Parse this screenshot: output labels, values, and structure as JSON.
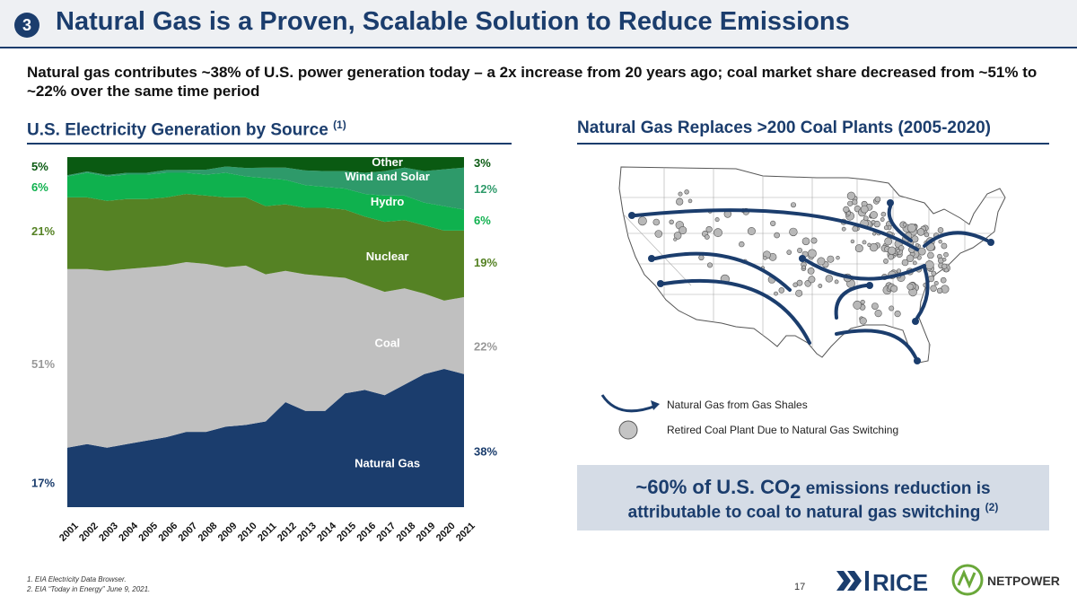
{
  "header": {
    "section_number": "3",
    "title": "Natural Gas is a Proven, Scalable Solution to Reduce Emissions"
  },
  "subtitle": "Natural gas contributes ~38% of U.S. power generation today – a 2x increase from 20 years ago; coal market share decreased from ~51% to ~22% over the same time period",
  "left_section": {
    "title": "U.S. Electricity Generation by Source",
    "footnote_ref": "(1)"
  },
  "right_section": {
    "title": "Natural Gas Replaces >200 Coal Plants (2005-2020)"
  },
  "map_legend": {
    "arrow_label": "Natural Gas from Gas Shales",
    "dot_label": "Retired Coal Plant Due to Natural Gas Switching"
  },
  "callout": {
    "line1_big": "~60% of U.S. CO",
    "line1_sub": "2",
    "line1_rest": " emissions reduction is",
    "line2": "attributable to coal to natural gas switching ",
    "line2_ref": "(2)"
  },
  "footnotes": [
    "1.  EIA Electricity Data Browser.",
    "2.  EIA “Today in Energy” June 9, 2021."
  ],
  "page_number": "17",
  "logos": {
    "rice": "RICE",
    "netpower": "NETPOWER"
  },
  "colors": {
    "natural_gas": "#1b3d6d",
    "coal": "#c0c0c0",
    "nuclear": "#558224",
    "hydro": "#0fb14e",
    "wind_solar": "#2e9a6a",
    "other": "#0a5a12",
    "title_blue": "#1b3d6d"
  },
  "chart_data": {
    "type": "area",
    "stacked": true,
    "title": "U.S. Electricity Generation by Source",
    "x": [
      "2001",
      "2002",
      "2003",
      "2004",
      "2005",
      "2006",
      "2007",
      "2008",
      "2009",
      "2010",
      "2011",
      "2012",
      "2013",
      "2014",
      "2015",
      "2016",
      "2017",
      "2018",
      "2019",
      "2020",
      "2021"
    ],
    "ylim": [
      0,
      100
    ],
    "series": [
      {
        "name": "Natural Gas",
        "values": [
          17,
          18,
          17,
          18,
          19,
          20,
          21.5,
          21.5,
          23,
          23.5,
          24.5,
          30,
          27.5,
          27.5,
          32.5,
          33.5,
          32,
          35,
          38,
          39.5,
          38
        ]
      },
      {
        "name": "Coal",
        "values": [
          51,
          50,
          50.5,
          50,
          49.5,
          49,
          48.5,
          48,
          45.5,
          45.5,
          42,
          37.5,
          39,
          38.5,
          33,
          30,
          29.5,
          27.5,
          23,
          19.5,
          22
        ]
      },
      {
        "name": "Nuclear",
        "values": [
          20.5,
          20.5,
          20,
          20,
          19.5,
          19.5,
          19.5,
          19.5,
          20,
          19.5,
          19.5,
          19,
          19,
          19.5,
          19.5,
          19.5,
          20,
          19.5,
          19.5,
          20,
          19
        ]
      },
      {
        "name": "Hydro",
        "values": [
          6,
          7,
          7,
          7,
          7,
          7,
          6,
          6,
          7,
          6,
          8,
          7,
          6.5,
          6,
          6,
          6.5,
          7.5,
          7,
          6.5,
          7,
          6
        ]
      },
      {
        "name": "Wind and Solar",
        "values": [
          0.3,
          0.4,
          0.4,
          0.5,
          0.5,
          0.8,
          0.8,
          1.4,
          1.8,
          2.4,
          3,
          3.5,
          4.2,
          4.5,
          5,
          6,
          7,
          8,
          9,
          10.5,
          12
        ]
      },
      {
        "name": "Other",
        "values": [
          5.2,
          4.1,
          5.1,
          4.5,
          4.5,
          3.7,
          3.7,
          3.6,
          2.7,
          3.1,
          3,
          3,
          3.8,
          4,
          4,
          4.5,
          4,
          3,
          4,
          3.5,
          3
        ]
      }
    ],
    "start_labels": [
      "17%",
      "51%",
      "21%",
      "6%",
      "5%"
    ],
    "end_labels": [
      "38%",
      "22%",
      "19%",
      "6%",
      "12%",
      "3%"
    ]
  },
  "map": {
    "arrow_count": 9,
    "dot_count": 210
  }
}
